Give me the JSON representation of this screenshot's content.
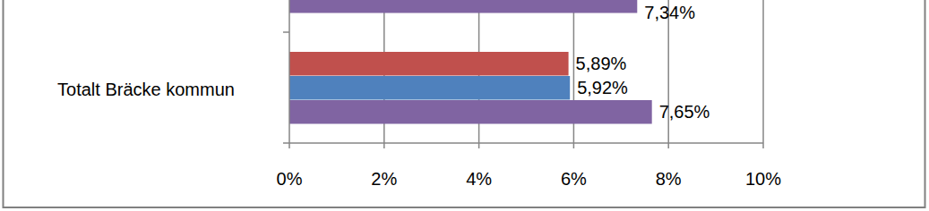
{
  "chart_data": {
    "type": "bar",
    "orientation": "horizontal",
    "categories": [
      null,
      "Totalt Bräcke kommun"
    ],
    "series": [
      {
        "color": "#c0504d",
        "values": [
          null,
          5.89
        ],
        "value_labels": [
          null,
          "5,89%"
        ]
      },
      {
        "color": "#4f81bd",
        "values": [
          null,
          5.92
        ],
        "value_labels": [
          null,
          "5,92%"
        ]
      },
      {
        "color": "#8064a2",
        "values": [
          7.34,
          7.65
        ],
        "value_labels": [
          "7,34%",
          "7,65%"
        ]
      }
    ],
    "xlim": [
      0,
      10
    ],
    "xticks": [
      {
        "value": 0,
        "label": "0%"
      },
      {
        "value": 2,
        "label": "2%"
      },
      {
        "value": 4,
        "label": "4%"
      },
      {
        "value": 6,
        "label": "6%"
      },
      {
        "value": 8,
        "label": "8%"
      },
      {
        "value": 10,
        "label": "10%"
      }
    ],
    "grid": true,
    "data_labels": true
  }
}
